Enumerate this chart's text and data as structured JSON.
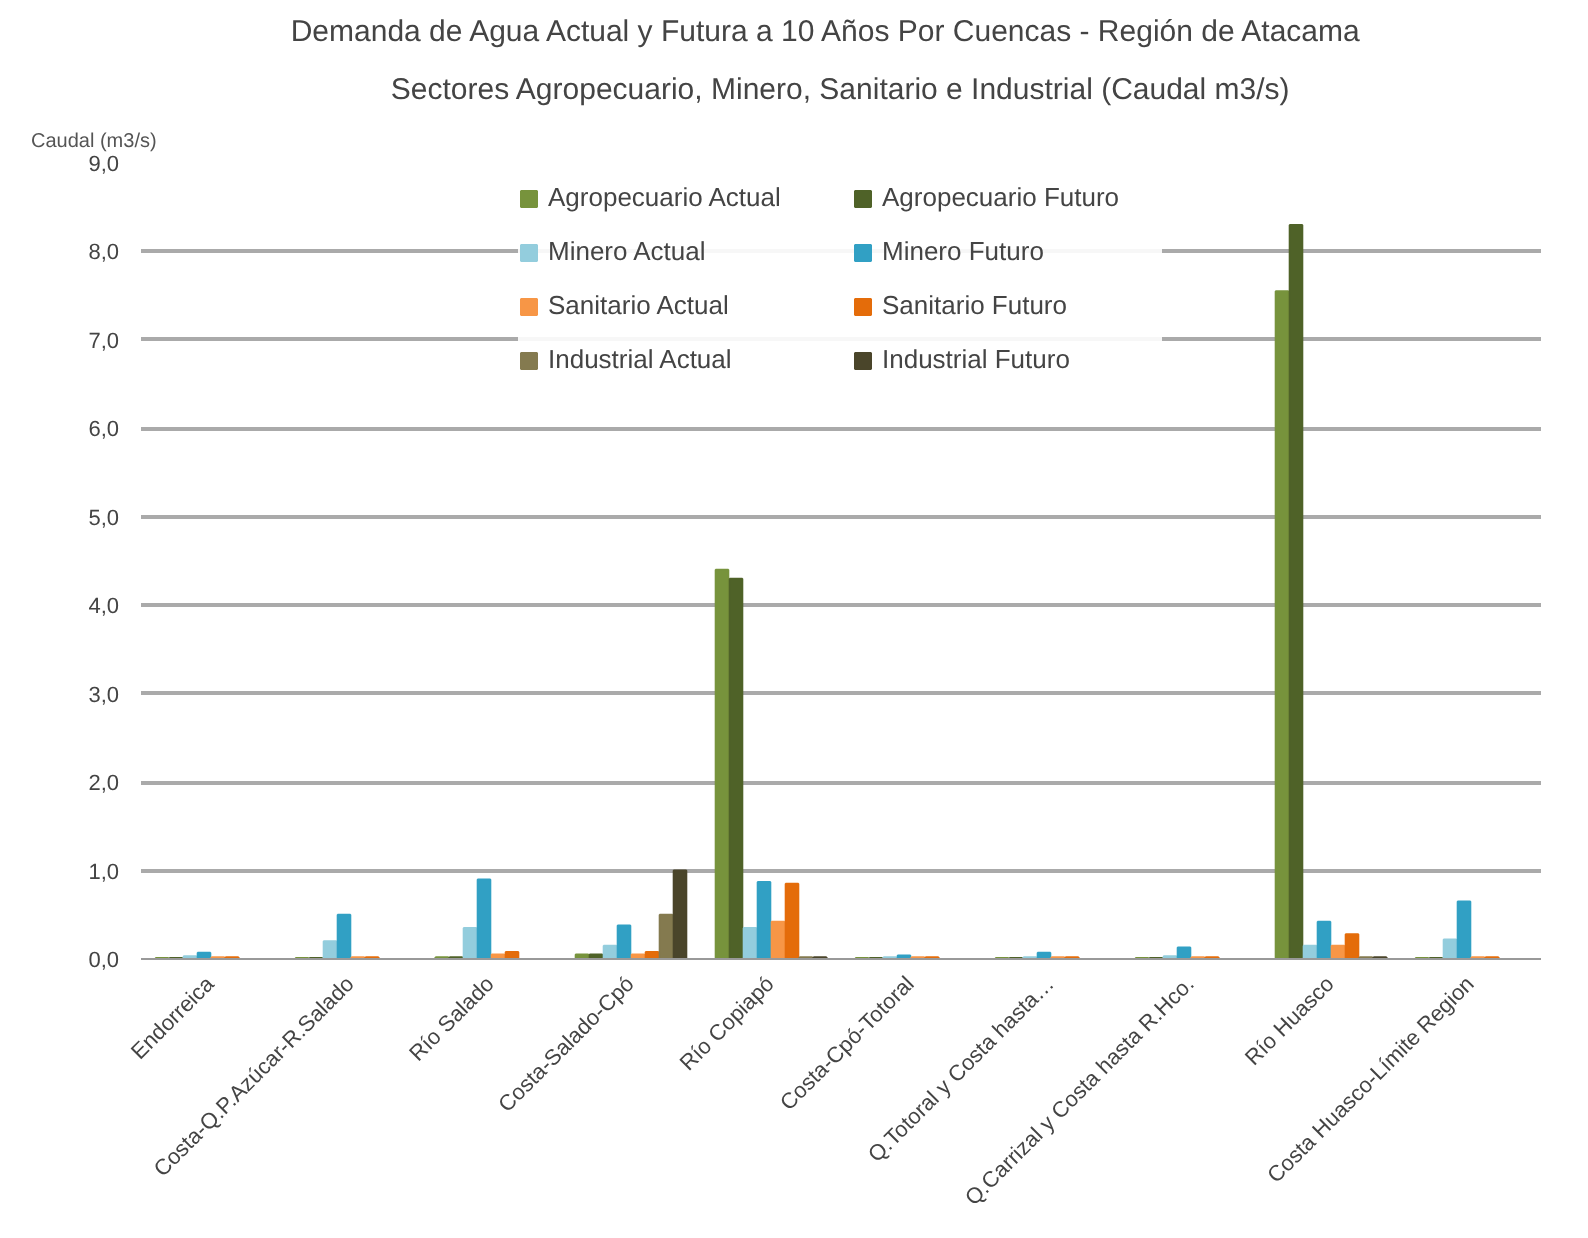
{
  "chart_data": {
    "type": "bar",
    "title": "Demanda de Agua Actual  y Futura a 10 Años Por Cuencas -   Región de Atacama",
    "subtitle": "Sectores Agropecuario, Minero, Sanitario e Industrial (Caudal m3/s)",
    "ylabel": "Caudal (m3/s)",
    "categories": [
      "Endorreica",
      "Costa-Q.P.Azúcar-R.Salado",
      "Río Salado",
      "Costa-Salado-Cpó",
      "Río Copiapó",
      "Costa-Cpó-Totoral",
      "Q.Totoral y Costa hasta…",
      "Q.Carrizal y Costa hasta R.Hco.",
      "Río Huasco",
      "Costa Huasco-Límite Region"
    ],
    "series": [
      {
        "name": "Agropecuario Actual",
        "color": "#77933c",
        "values": [
          0.01,
          0.01,
          0.02,
          0.05,
          4.4,
          0.01,
          0.01,
          0.01,
          7.55,
          0.01
        ]
      },
      {
        "name": "Agropecuario Futuro",
        "color": "#4f6228",
        "values": [
          0.01,
          0.01,
          0.02,
          0.05,
          4.3,
          0.01,
          0.01,
          0.01,
          8.3,
          0.01
        ]
      },
      {
        "name": "Minero Actual",
        "color": "#93cddd",
        "values": [
          0.03,
          0.2,
          0.35,
          0.15,
          0.35,
          0.02,
          0.02,
          0.03,
          0.15,
          0.22
        ]
      },
      {
        "name": "Minero Futuro",
        "color": "#31a0c4",
        "values": [
          0.07,
          0.5,
          0.9,
          0.38,
          0.87,
          0.04,
          0.07,
          0.13,
          0.42,
          0.65
        ]
      },
      {
        "name": "Sanitario Actual",
        "color": "#f79646",
        "values": [
          0.02,
          0.02,
          0.05,
          0.05,
          0.42,
          0.02,
          0.02,
          0.02,
          0.15,
          0.02
        ]
      },
      {
        "name": "Sanitario Futuro",
        "color": "#e46c0a",
        "values": [
          0.02,
          0.02,
          0.08,
          0.08,
          0.85,
          0.02,
          0.02,
          0.02,
          0.28,
          0.02
        ]
      },
      {
        "name": "Industrial Actual",
        "color": "#847a4f",
        "values": [
          0,
          0,
          0,
          0.5,
          0.02,
          0,
          0,
          0,
          0.02,
          0
        ]
      },
      {
        "name": "Industrial Futuro",
        "color": "#4a452a",
        "values": [
          0,
          0,
          0,
          1.0,
          0.02,
          0,
          0,
          0,
          0.02,
          0
        ]
      }
    ],
    "ylim": [
      0,
      9
    ],
    "yticks": [
      {
        "value": 0,
        "label": "0,0"
      },
      {
        "value": 1,
        "label": "1,0"
      },
      {
        "value": 2,
        "label": "2,0"
      },
      {
        "value": 3,
        "label": "3,0"
      },
      {
        "value": 4,
        "label": "4,0"
      },
      {
        "value": 5,
        "label": "5,0"
      },
      {
        "value": 6,
        "label": "6,0"
      },
      {
        "value": 7,
        "label": "7,0"
      },
      {
        "value": 8,
        "label": "8,0"
      },
      {
        "value": 9,
        "label": "9,0"
      }
    ],
    "grid": "y",
    "legend": "top"
  }
}
